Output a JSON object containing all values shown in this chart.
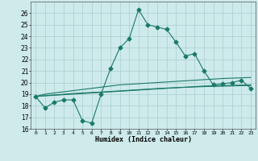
{
  "xlabel": "Humidex (Indice chaleur)",
  "ylabel": "",
  "background_color": "#ceeaea",
  "grid_color": "#aacece",
  "line_color": "#1a7a6a",
  "x_values": [
    0,
    1,
    2,
    3,
    4,
    5,
    6,
    7,
    8,
    9,
    10,
    11,
    12,
    13,
    14,
    15,
    16,
    17,
    18,
    19,
    20,
    21,
    22,
    23
  ],
  "main_series": [
    18.8,
    17.8,
    18.3,
    18.5,
    18.5,
    16.7,
    16.5,
    19.0,
    21.2,
    23.0,
    23.8,
    26.3,
    25.0,
    24.8,
    24.6,
    23.5,
    22.3,
    22.5,
    21.0,
    19.8,
    19.9,
    20.0,
    20.2,
    19.5
  ],
  "linear1": [
    18.8,
    19.0,
    19.1,
    19.2,
    19.3,
    19.4,
    19.5,
    19.6,
    19.7,
    19.8,
    19.85,
    19.9,
    19.95,
    20.0,
    20.05,
    20.1,
    20.15,
    20.2,
    20.25,
    20.3,
    20.35,
    20.38,
    20.41,
    20.44
  ],
  "linear2": [
    18.8,
    18.85,
    18.9,
    18.95,
    19.0,
    19.05,
    19.1,
    19.15,
    19.2,
    19.25,
    19.3,
    19.35,
    19.4,
    19.45,
    19.5,
    19.55,
    19.6,
    19.65,
    19.7,
    19.72,
    19.74,
    19.76,
    19.78,
    19.8
  ],
  "linear3": [
    18.8,
    18.87,
    18.93,
    18.99,
    19.05,
    19.1,
    19.14,
    19.18,
    19.23,
    19.28,
    19.33,
    19.38,
    19.43,
    19.48,
    19.52,
    19.56,
    19.59,
    19.62,
    19.65,
    19.67,
    19.69,
    19.71,
    19.73,
    19.75
  ],
  "ylim": [
    16,
    27
  ],
  "yticks": [
    16,
    17,
    18,
    19,
    20,
    21,
    22,
    23,
    24,
    25,
    26
  ],
  "xlim": [
    -0.5,
    23.5
  ],
  "xticks": [
    0,
    1,
    2,
    3,
    4,
    5,
    6,
    7,
    8,
    9,
    10,
    11,
    12,
    13,
    14,
    15,
    16,
    17,
    18,
    19,
    20,
    21,
    22,
    23
  ],
  "xtick_labels": [
    "0",
    "1",
    "2",
    "3",
    "4",
    "5",
    "6",
    "7",
    "8",
    "9",
    "10",
    "11",
    "12",
    "13",
    "14",
    "15",
    "16",
    "17",
    "18",
    "19",
    "20",
    "21",
    "22",
    "23"
  ],
  "marker": "D",
  "markersize": 2.5,
  "linewidth": 0.8
}
